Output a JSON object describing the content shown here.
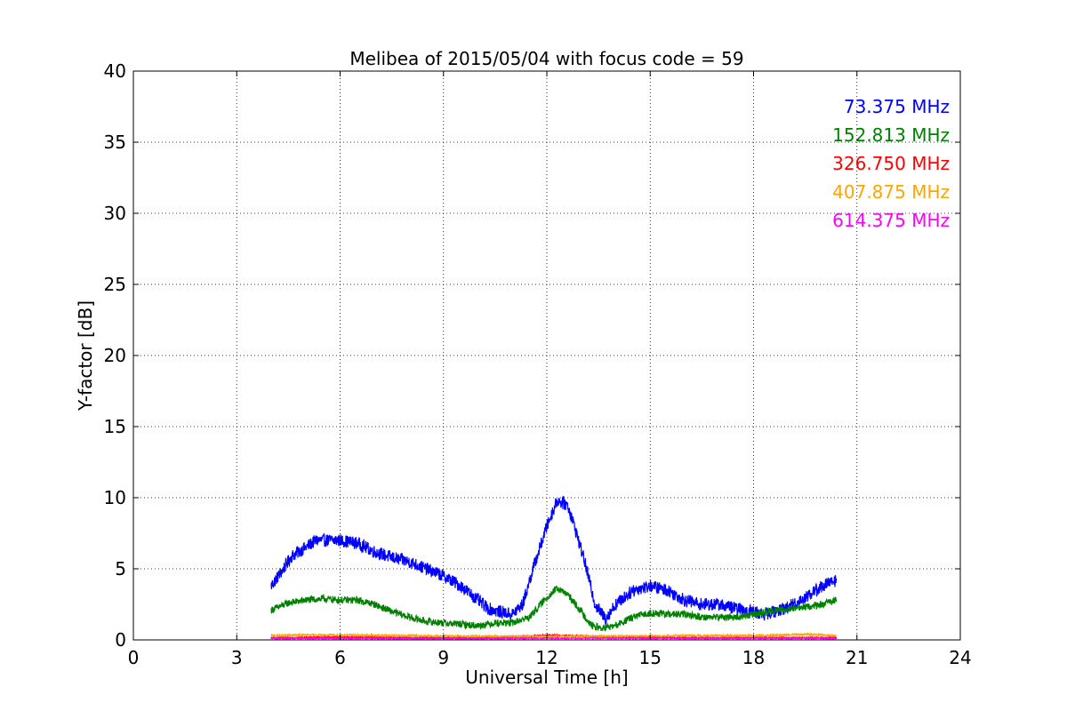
{
  "chart_data": {
    "type": "line",
    "title": "Melibea of 2015/05/04 with focus code = 59",
    "xlabel": "Universal Time [h]",
    "ylabel": "Y-factor [dB]",
    "xlim": [
      0,
      24
    ],
    "ylim": [
      0,
      40
    ],
    "xticks": [
      0,
      3,
      6,
      9,
      12,
      15,
      18,
      21,
      24
    ],
    "yticks": [
      0,
      5,
      10,
      15,
      20,
      25,
      30,
      35,
      40
    ],
    "xtick_labels": [
      "0",
      "3",
      "6",
      "9",
      "12",
      "15",
      "18",
      "21",
      "24"
    ],
    "ytick_labels": [
      "0",
      "5",
      "10",
      "15",
      "20",
      "25",
      "30",
      "35",
      "40"
    ],
    "grid": true,
    "legend_position": "top-right",
    "series": [
      {
        "name": "73.375 MHz",
        "color": "#0000ff",
        "noise": 0.45,
        "x": [
          4.0,
          4.3,
          4.6,
          5.0,
          5.3,
          5.6,
          6.0,
          6.5,
          7.0,
          7.5,
          8.0,
          8.5,
          9.0,
          9.5,
          10.0,
          10.3,
          10.6,
          11.0,
          11.3,
          11.6,
          12.0,
          12.3,
          12.6,
          12.8,
          13.1,
          13.4,
          13.7,
          14.0,
          14.5,
          15.0,
          15.5,
          16.0,
          16.5,
          17.0,
          17.5,
          18.0,
          18.3,
          18.6,
          19.0,
          19.5,
          20.0,
          20.4
        ],
        "y": [
          3.8,
          4.8,
          5.9,
          6.5,
          7.0,
          7.0,
          7.0,
          6.8,
          6.2,
          5.8,
          5.5,
          5.0,
          4.5,
          3.8,
          2.8,
          2.2,
          2.0,
          1.8,
          2.5,
          5.0,
          8.0,
          9.8,
          9.5,
          8.0,
          5.5,
          2.5,
          1.5,
          2.5,
          3.5,
          3.8,
          3.5,
          2.8,
          2.5,
          2.5,
          2.2,
          2.0,
          1.8,
          2.0,
          2.3,
          3.0,
          3.8,
          4.2
        ]
      },
      {
        "name": "152.813 MHz",
        "color": "#008000",
        "noise": 0.25,
        "x": [
          4.0,
          4.5,
          5.0,
          5.5,
          6.0,
          6.5,
          7.0,
          7.5,
          8.0,
          8.5,
          9.0,
          9.5,
          10.0,
          10.5,
          11.0,
          11.5,
          12.0,
          12.3,
          12.6,
          13.0,
          13.3,
          13.6,
          14.0,
          14.5,
          15.0,
          15.5,
          16.0,
          16.5,
          17.0,
          17.5,
          18.0,
          18.5,
          19.0,
          19.5,
          20.0,
          20.4
        ],
        "y": [
          2.1,
          2.6,
          2.8,
          2.9,
          2.8,
          2.8,
          2.5,
          2.0,
          1.6,
          1.3,
          1.2,
          1.1,
          1.0,
          1.2,
          1.2,
          1.6,
          3.0,
          3.6,
          3.2,
          2.0,
          1.0,
          0.8,
          1.0,
          1.6,
          1.9,
          1.8,
          1.8,
          1.6,
          1.6,
          1.6,
          1.8,
          2.0,
          2.2,
          2.3,
          2.5,
          2.8
        ]
      },
      {
        "name": "326.750 MHz",
        "color": "#ff0000",
        "noise": 0.05,
        "x": [
          4.0,
          6.0,
          8.0,
          10.0,
          11.5,
          12.0,
          12.5,
          14.0,
          16.0,
          18.0,
          20.0,
          20.4
        ],
        "y": [
          0.15,
          0.2,
          0.15,
          0.15,
          0.25,
          0.35,
          0.3,
          0.2,
          0.15,
          0.15,
          0.15,
          0.15
        ]
      },
      {
        "name": "407.875 MHz",
        "color": "#ffa500",
        "noise": 0.06,
        "x": [
          4.0,
          5.0,
          6.0,
          8.0,
          10.0,
          12.0,
          14.0,
          16.0,
          18.0,
          19.0,
          19.5,
          20.0,
          20.4
        ],
        "y": [
          0.3,
          0.35,
          0.35,
          0.3,
          0.25,
          0.25,
          0.25,
          0.3,
          0.3,
          0.35,
          0.4,
          0.35,
          0.3
        ]
      },
      {
        "name": "614.375 MHz",
        "color": "#ff00ff",
        "noise": 0.04,
        "x": [
          4.0,
          6.0,
          8.0,
          10.0,
          12.0,
          14.0,
          16.0,
          18.0,
          20.0,
          20.4
        ],
        "y": [
          0.1,
          0.12,
          0.1,
          0.1,
          0.12,
          0.12,
          0.12,
          0.12,
          0.12,
          0.1
        ]
      }
    ]
  }
}
